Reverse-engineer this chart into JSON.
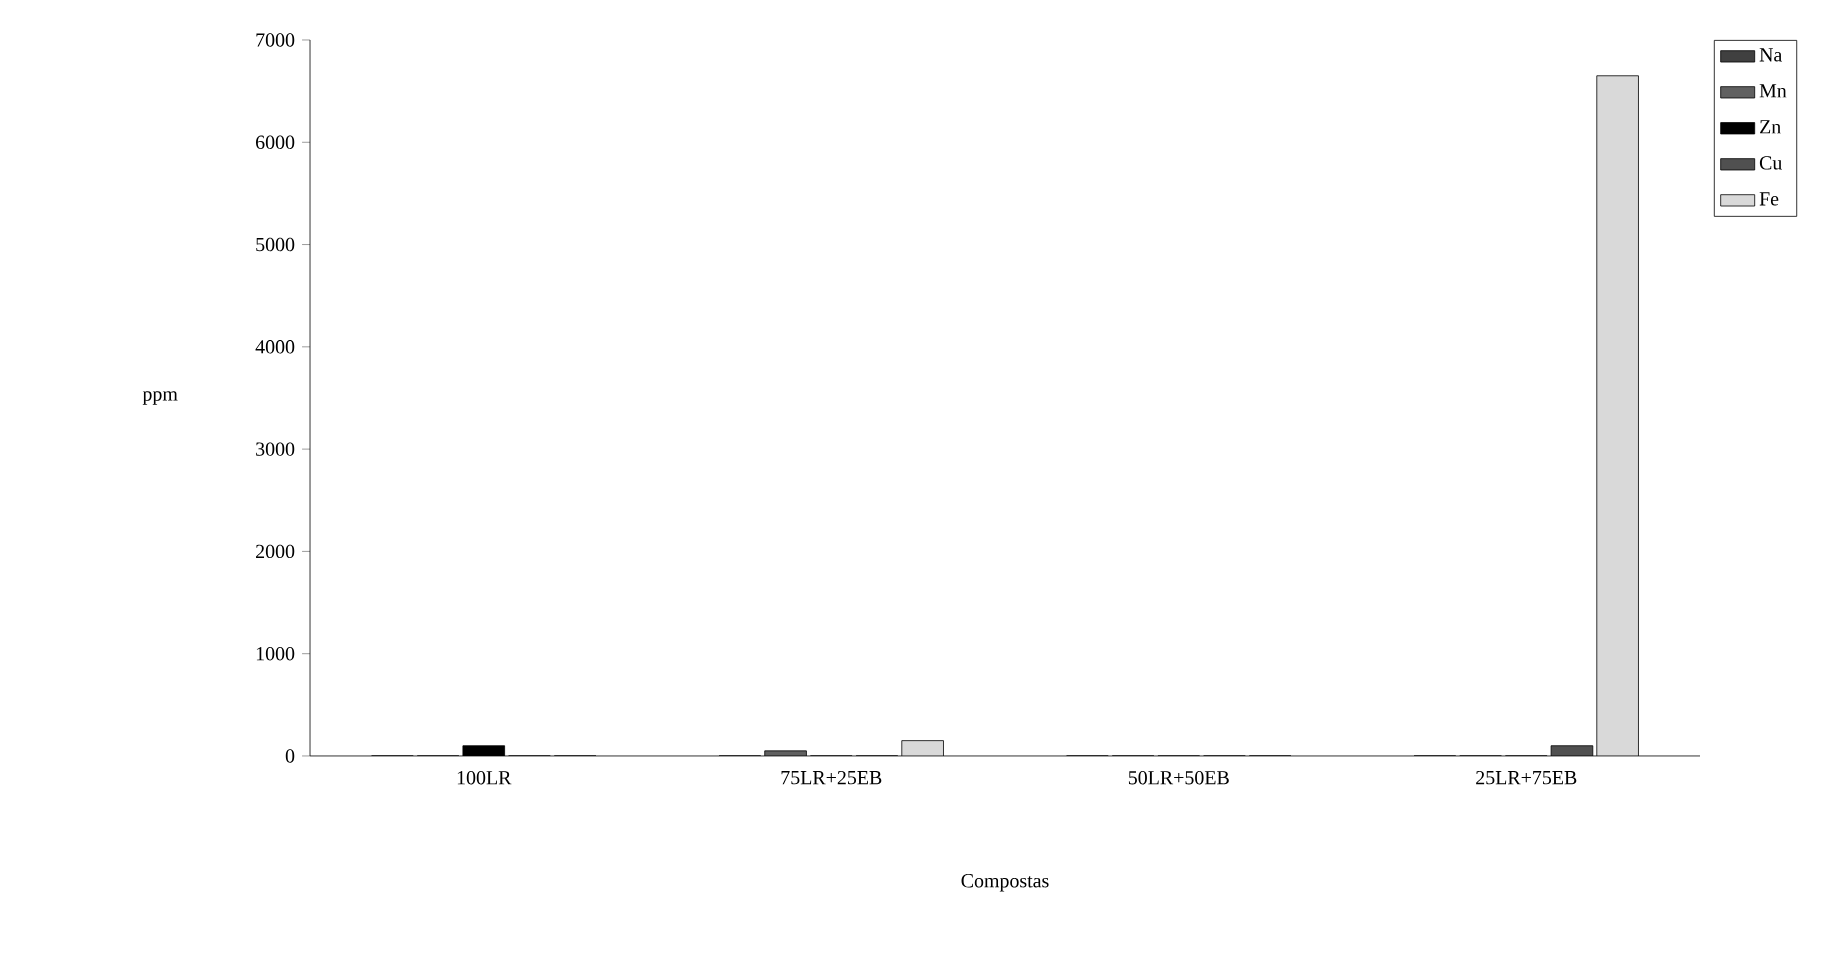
{
  "chart_data": {
    "type": "bar",
    "xlabel": "Compostas",
    "ylabel": "ppm",
    "categories": [
      "100LR",
      "75LR+25EB",
      "50LR+50EB",
      "25LR+75EB"
    ],
    "series": [
      {
        "name": "Na",
        "color": "#404040",
        "values": [
          0,
          0,
          0,
          0
        ]
      },
      {
        "name": "Mn",
        "color": "#606060",
        "values": [
          0,
          50,
          0,
          0
        ]
      },
      {
        "name": "Zn",
        "color": "#000000",
        "values": [
          100,
          0,
          0,
          0
        ]
      },
      {
        "name": "Cu",
        "color": "#505050",
        "values": [
          0,
          0,
          0,
          100
        ]
      },
      {
        "name": "Fe",
        "color": "#d9d9d9",
        "values": [
          0,
          150,
          0,
          6650
        ]
      }
    ],
    "ylim": [
      0,
      7000
    ],
    "yticks": [
      0,
      1000,
      2000,
      3000,
      4000,
      5000,
      6000,
      7000
    ],
    "grid": false,
    "legend": "top right"
  }
}
